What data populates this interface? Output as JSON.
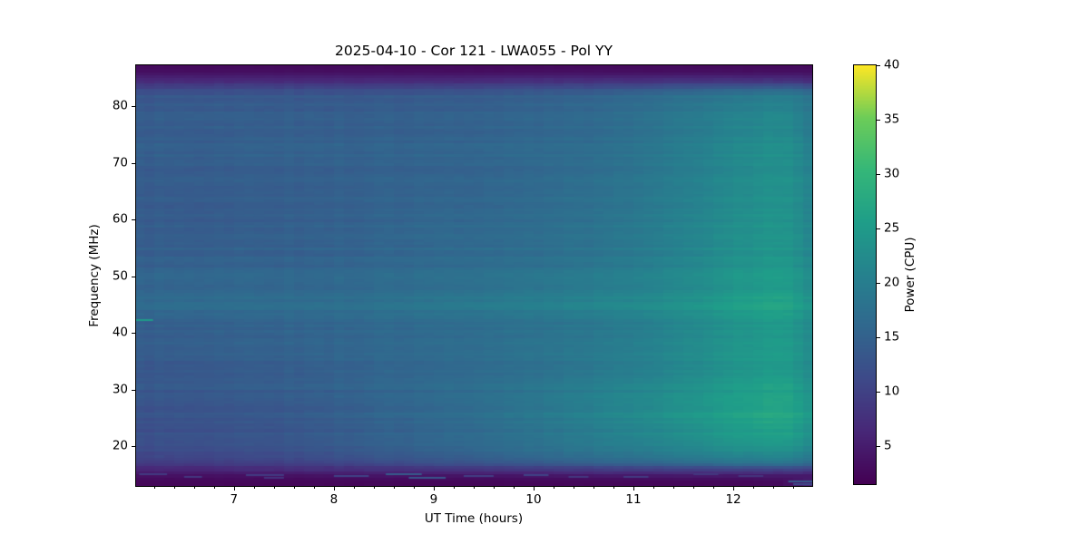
{
  "figure": {
    "background": "#ffffff"
  },
  "chart_data": {
    "type": "heatmap",
    "subtype": "dynamic-spectrum",
    "title": "2025-04-10 - Cor 121 - LWA055 - Pol YY",
    "xlabel": "UT Time (hours)",
    "ylabel": "Frequency (MHz)",
    "xlim": [
      6.02,
      12.79
    ],
    "ylim": [
      13.0,
      87.2
    ],
    "x_ticks": [
      7,
      8,
      9,
      10,
      11,
      12
    ],
    "x_minor_step": 0.2,
    "y_ticks": [
      20,
      30,
      40,
      50,
      60,
      70,
      80
    ],
    "grid_lines": "off",
    "colorbar": {
      "label": "Power (CPU)",
      "ticks": [
        5,
        10,
        15,
        20,
        25,
        30,
        35,
        40
      ],
      "vmin": 1.5,
      "vmax": 40
    },
    "colormap": {
      "name": "viridis",
      "stops": [
        [
          0.0,
          "#440154"
        ],
        [
          0.125,
          "#482878"
        ],
        [
          0.25,
          "#3e4a89"
        ],
        [
          0.375,
          "#31688e"
        ],
        [
          0.5,
          "#26828e"
        ],
        [
          0.625,
          "#1f9e89"
        ],
        [
          0.75,
          "#35b779"
        ],
        [
          0.875,
          "#6dcd59"
        ],
        [
          1.0,
          "#fde725"
        ]
      ]
    },
    "grid": {
      "comment": "Power (CPU) sampled on time (hours UT) x frequency (MHz) nodes; freqs ascending",
      "times": [
        6.0,
        6.7,
        7.5,
        8.3,
        9.1,
        9.9,
        10.7,
        11.5,
        12.1,
        12.5,
        12.8
      ],
      "freqs": [
        13,
        14,
        14.8,
        15.8,
        17,
        19,
        22,
        25.5,
        29,
        33,
        38,
        42,
        45,
        47.5,
        53,
        60,
        67,
        73,
        78,
        82,
        84.5,
        86,
        87.2
      ],
      "power": [
        [
          2.0,
          2.0,
          2.0,
          2.0,
          2.0,
          2.0,
          2.0,
          2.0,
          2.0,
          2.5,
          6.0
        ],
        [
          2.5,
          2.5,
          2.5,
          2.5,
          2.5,
          2.5,
          2.5,
          2.5,
          2.5,
          3.0,
          5.0
        ],
        [
          3.5,
          3.5,
          3.5,
          4.0,
          4.0,
          4.0,
          4.5,
          4.5,
          4.5,
          4.5,
          4.5
        ],
        [
          6.0,
          6.0,
          6.5,
          7.0,
          7.5,
          8.0,
          8.5,
          9.0,
          9.5,
          9.5,
          9.0
        ],
        [
          9.5,
          10.0,
          10.5,
          11.5,
          13.0,
          14.0,
          15.5,
          17.0,
          18.5,
          19.0,
          17.0
        ],
        [
          11.0,
          11.5,
          12.0,
          13.5,
          15.0,
          16.5,
          18.5,
          20.5,
          22.5,
          23.0,
          20.5
        ],
        [
          12.0,
          12.5,
          13.0,
          14.5,
          16.0,
          17.5,
          20.0,
          22.5,
          25.0,
          26.0,
          23.0
        ],
        [
          12.5,
          13.0,
          13.5,
          15.0,
          16.5,
          18.5,
          21.0,
          24.0,
          26.5,
          27.5,
          24.5
        ],
        [
          13.0,
          13.5,
          14.0,
          15.0,
          16.5,
          18.0,
          20.5,
          23.0,
          25.5,
          26.5,
          23.5
        ],
        [
          13.5,
          14.0,
          14.5,
          15.5,
          16.5,
          17.5,
          19.5,
          22.0,
          24.5,
          25.5,
          22.5
        ],
        [
          14.0,
          14.5,
          15.0,
          15.5,
          16.5,
          17.5,
          19.0,
          21.5,
          24.0,
          25.0,
          22.0
        ],
        [
          14.5,
          15.0,
          15.5,
          16.0,
          17.0,
          17.5,
          19.0,
          21.5,
          24.0,
          25.0,
          22.0
        ],
        [
          16.5,
          17.0,
          17.0,
          17.5,
          19.0,
          20.0,
          21.5,
          23.5,
          26.0,
          27.0,
          24.0
        ],
        [
          15.5,
          16.0,
          16.0,
          16.5,
          17.5,
          18.5,
          20.0,
          22.0,
          24.5,
          25.5,
          22.5
        ],
        [
          14.5,
          15.0,
          15.0,
          15.5,
          16.5,
          17.0,
          18.5,
          21.0,
          23.5,
          24.5,
          21.5
        ],
        [
          14.0,
          14.0,
          14.5,
          15.0,
          16.0,
          16.5,
          18.0,
          20.5,
          23.0,
          24.0,
          21.0
        ],
        [
          14.0,
          14.5,
          14.5,
          15.0,
          15.5,
          16.0,
          17.5,
          20.0,
          22.5,
          23.5,
          21.0
        ],
        [
          14.5,
          14.5,
          15.0,
          15.0,
          15.5,
          16.0,
          17.0,
          19.5,
          22.0,
          23.0,
          20.0
        ],
        [
          14.0,
          14.5,
          14.5,
          14.5,
          15.0,
          15.5,
          16.5,
          19.0,
          21.0,
          22.0,
          19.0
        ],
        [
          13.0,
          13.5,
          13.5,
          13.5,
          14.0,
          14.5,
          15.5,
          17.5,
          19.0,
          20.0,
          18.0
        ],
        [
          6.5,
          6.5,
          6.5,
          6.5,
          6.5,
          7.0,
          7.0,
          7.5,
          7.5,
          7.5,
          7.0
        ],
        [
          3.5,
          3.5,
          3.5,
          3.5,
          3.5,
          3.5,
          3.5,
          3.5,
          3.5,
          3.5,
          3.5
        ],
        [
          2.2,
          2.2,
          2.2,
          2.2,
          2.2,
          2.2,
          2.2,
          2.2,
          2.2,
          2.2,
          2.2
        ]
      ]
    },
    "rfi_streaks": [
      {
        "t0": 6.02,
        "t1": 6.19,
        "f": 42.2,
        "power": 25
      },
      {
        "t0": 6.05,
        "t1": 6.33,
        "f": 15.1,
        "power": 9
      },
      {
        "t0": 6.5,
        "t1": 6.68,
        "f": 14.6,
        "power": 8.5
      },
      {
        "t0": 7.12,
        "t1": 7.5,
        "f": 14.9,
        "power": 9
      },
      {
        "t0": 7.3,
        "t1": 7.5,
        "f": 14.5,
        "power": 8
      },
      {
        "t0": 8.0,
        "t1": 8.35,
        "f": 14.7,
        "power": 10
      },
      {
        "t0": 8.52,
        "t1": 8.88,
        "f": 15.0,
        "power": 14
      },
      {
        "t0": 8.75,
        "t1": 9.12,
        "f": 14.5,
        "power": 13
      },
      {
        "t0": 9.3,
        "t1": 9.6,
        "f": 14.8,
        "power": 9.5
      },
      {
        "t0": 9.9,
        "t1": 10.15,
        "f": 14.9,
        "power": 10
      },
      {
        "t0": 10.35,
        "t1": 10.55,
        "f": 14.6,
        "power": 8.5
      },
      {
        "t0": 10.9,
        "t1": 11.15,
        "f": 14.6,
        "power": 9
      },
      {
        "t0": 11.6,
        "t1": 11.85,
        "f": 15.15,
        "power": 8.5
      },
      {
        "t0": 12.05,
        "t1": 12.3,
        "f": 14.8,
        "power": 8
      },
      {
        "t0": 12.55,
        "t1": 12.79,
        "f": 13.8,
        "power": 14
      },
      {
        "t0": 12.6,
        "t1": 12.79,
        "f": 13.35,
        "power": 11
      }
    ]
  }
}
